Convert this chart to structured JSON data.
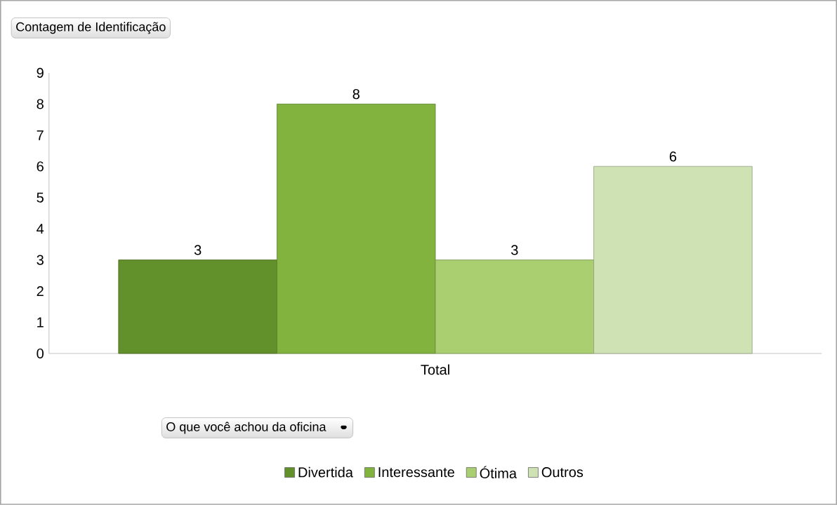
{
  "chart_data": {
    "type": "bar",
    "title": "Contagem de Identificação",
    "legend_title": "O que você achou da oficina",
    "categories": [
      "Total"
    ],
    "series": [
      {
        "name": "Divertida",
        "color": "#62902a",
        "values": [
          3
        ]
      },
      {
        "name": "Interessante",
        "color": "#82b33e",
        "values": [
          8
        ]
      },
      {
        "name": "Ótima",
        "color": "#a9cf70",
        "values": [
          3
        ]
      },
      {
        "name": "Outros",
        "color": "#cfe2b4",
        "values": [
          6
        ]
      }
    ],
    "ylim": [
      0,
      9
    ],
    "yticks": [
      0,
      1,
      2,
      3,
      4,
      5,
      6,
      7,
      8,
      9
    ],
    "data_labels": true,
    "legend": "bottom",
    "grid": false
  }
}
